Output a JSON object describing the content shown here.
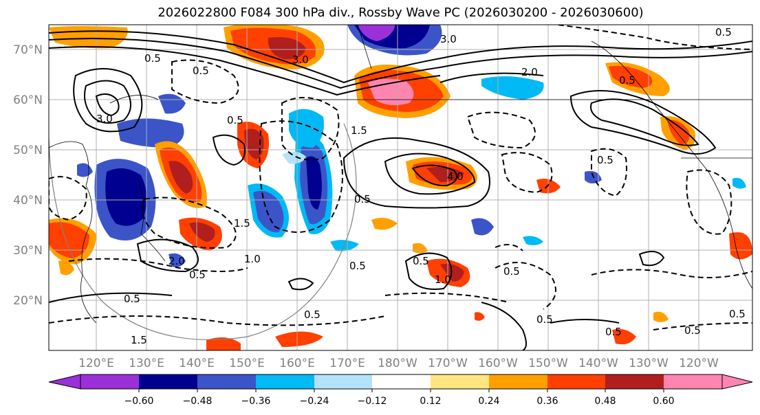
{
  "title": "2026022800 F084 300 hPa div., Rossby Wave PC (2026030200 - 2026030600)",
  "map": {
    "lat_labels": [
      "70°N",
      "60°N",
      "50°N",
      "40°N",
      "30°N",
      "20°N"
    ],
    "lon_labels": [
      "120°E",
      "130°E",
      "140°E",
      "150°E",
      "160°E",
      "170°E",
      "180°W",
      "170°W",
      "160°W",
      "150°W",
      "140°W",
      "130°W",
      "120°W"
    ],
    "contour_labels": [
      "0.5",
      "1.0",
      "1.5",
      "2.0",
      "3.0",
      "4.0"
    ]
  },
  "colorbar": {
    "tick_labels": [
      "−0.60",
      "−0.48",
      "−0.36",
      "−0.24",
      "−0.12",
      "0.12",
      "0.24",
      "0.36",
      "0.48",
      "0.60"
    ],
    "colors": [
      "#9b30d8",
      "#000090",
      "#3b55c8",
      "#00b9f5",
      "#b3e3fb",
      "#ffffff",
      "#ffe680",
      "#ffa000",
      "#ff4000",
      "#b01e1e",
      "#ff85b0"
    ]
  }
}
